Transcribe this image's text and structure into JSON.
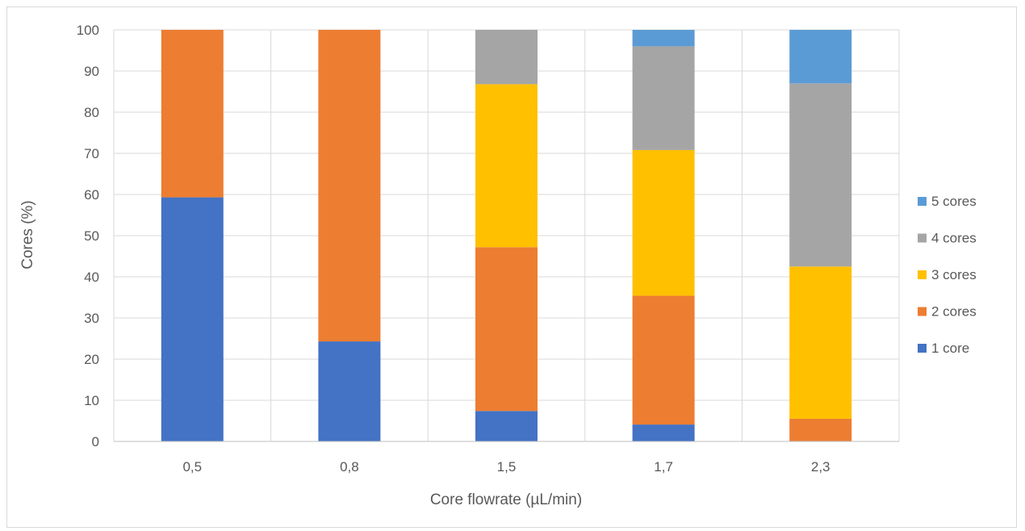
{
  "chart_data": {
    "type": "bar",
    "stacked": true,
    "title": "",
    "xlabel": "Core flowrate (µL/min)",
    "ylabel": "Cores (%)",
    "ylim": [
      0,
      100
    ],
    "yticks": [
      0,
      10,
      20,
      30,
      40,
      50,
      60,
      70,
      80,
      90,
      100
    ],
    "grid": true,
    "legend_position": "right",
    "categories": [
      "0,5",
      "0,8",
      "1,5",
      "1,7",
      "2,3"
    ],
    "series": [
      {
        "name": "1 core",
        "color": "#4472c4",
        "values": [
          59.3,
          24.3,
          7.4,
          4.1,
          0
        ]
      },
      {
        "name": "2 cores",
        "color": "#ed7d31",
        "values": [
          40.7,
          75.7,
          39.8,
          31.3,
          5.5
        ]
      },
      {
        "name": "3 cores",
        "color": "#ffc000",
        "values": [
          0,
          0,
          39.6,
          35.4,
          37.0
        ]
      },
      {
        "name": "4 cores",
        "color": "#a5a5a5",
        "values": [
          0,
          0,
          13.2,
          25.2,
          44.5
        ]
      },
      {
        "name": "5 cores",
        "color": "#5b9bd5",
        "values": [
          0,
          0,
          0,
          4.0,
          13.0
        ]
      }
    ]
  }
}
